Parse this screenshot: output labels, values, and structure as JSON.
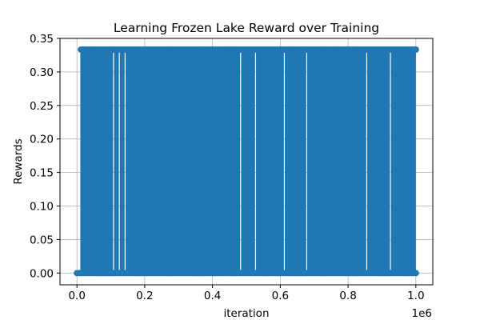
{
  "chart_data": {
    "type": "line",
    "title": "Learning Frozen Lake Reward over Training",
    "xlabel": "iteration",
    "ylabel": "Rewards",
    "x_offset_text": "1e6",
    "xlim": [
      -50000,
      1050000
    ],
    "ylim": [
      -0.0175,
      0.35
    ],
    "xticks": [
      0,
      200000,
      400000,
      600000,
      800000,
      1000000
    ],
    "xtick_labels": [
      "0.0",
      "0.2",
      "0.4",
      "0.6",
      "0.8",
      "1.0"
    ],
    "yticks": [
      0.0,
      0.05,
      0.1,
      0.15,
      0.2,
      0.25,
      0.3,
      0.35
    ],
    "ytick_labels": [
      "0.00",
      "0.05",
      "0.10",
      "0.15",
      "0.20",
      "0.25",
      "0.30",
      "0.35"
    ],
    "grid": true,
    "series": [
      {
        "color": "#1f77b4",
        "marker": "circle",
        "x_range": [
          0,
          1000000
        ],
        "values_observed": [
          0.0,
          0.3333
        ],
        "dense_from_x": 10000,
        "gaps_x": [
          108000,
          125000,
          142000,
          483000,
          527000,
          612000,
          678000,
          855000,
          925000
        ]
      }
    ]
  }
}
